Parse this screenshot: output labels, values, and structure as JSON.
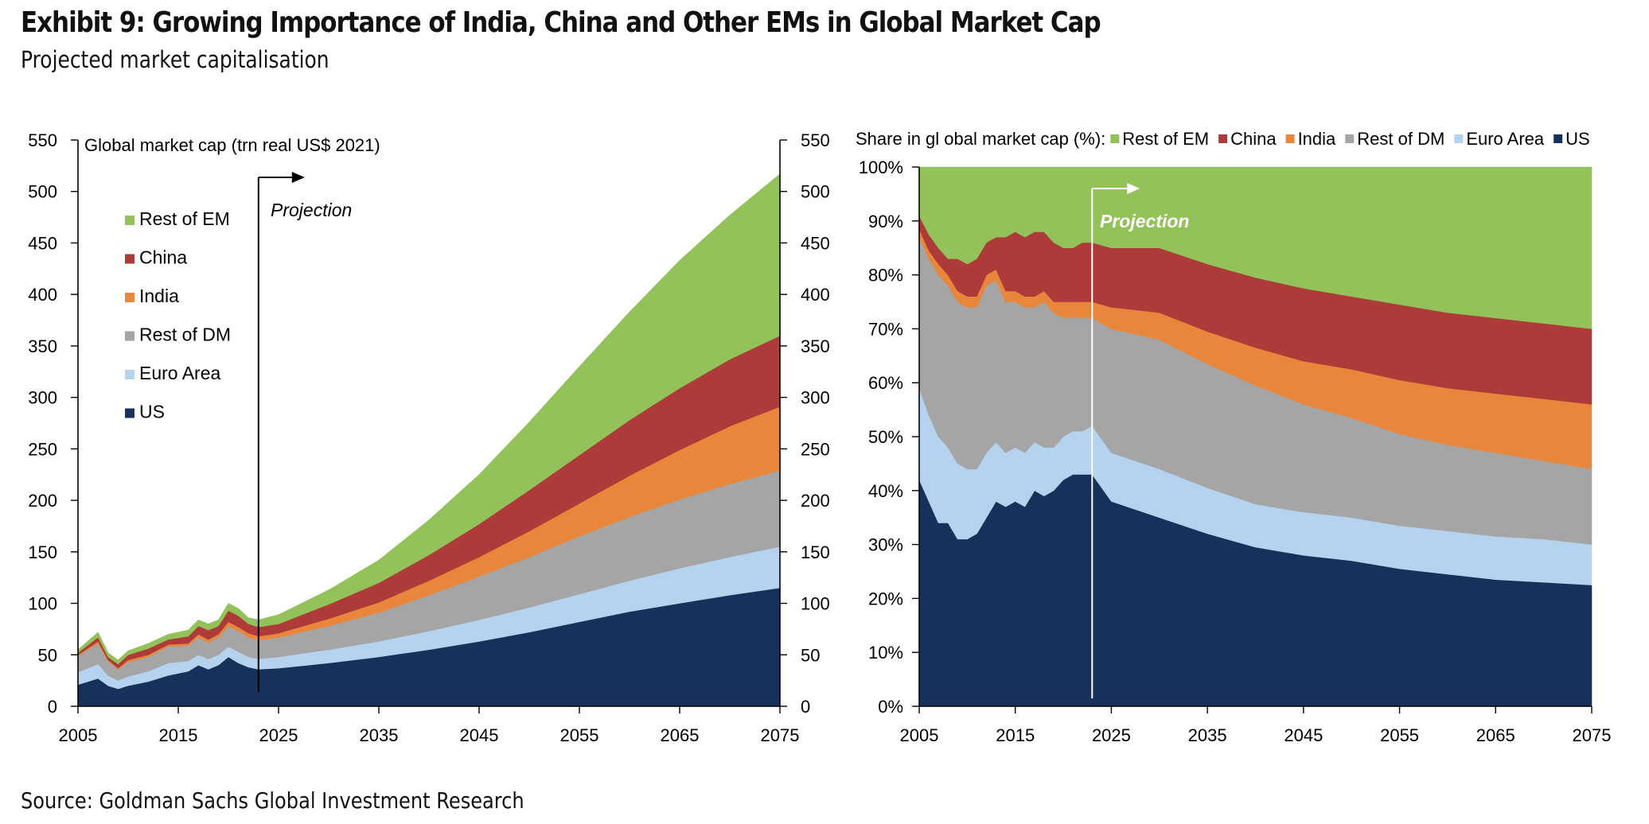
{
  "header": {
    "title": "Exhibit 9: Growing Importance of India, China and Other EMs in Global Market Cap",
    "subtitle": "Projected market capitalisation"
  },
  "footer": {
    "source": "Source: Goldman Sachs Global Investment Research"
  },
  "colors": {
    "US": "#17325a",
    "Euro Area": "#b5d3ee",
    "Rest of DM": "#a5a5a5",
    "India": "#e8873c",
    "China": "#ae3a39",
    "Rest of EM": "#93c15a"
  },
  "chart_data": [
    {
      "type": "area",
      "stacked": true,
      "title": "Global market cap (trn real US$ 2021)",
      "annotation": "Projection",
      "projection_start": 2023,
      "x": [
        2005,
        2007,
        2008,
        2009,
        2010,
        2012,
        2014,
        2016,
        2017,
        2018,
        2019,
        2020,
        2021,
        2022,
        2023,
        2025,
        2030,
        2035,
        2040,
        2045,
        2050,
        2055,
        2060,
        2065,
        2070,
        2075
      ],
      "xlim": [
        2005,
        2075
      ],
      "xticks": [
        2005,
        2015,
        2025,
        2035,
        2045,
        2055,
        2065,
        2075
      ],
      "ylim": [
        0,
        550
      ],
      "yticks": [
        0,
        50,
        100,
        150,
        200,
        250,
        300,
        350,
        400,
        450,
        500,
        550
      ],
      "legend_position": "upper-left",
      "series": [
        {
          "name": "US",
          "values": [
            21,
            27,
            20,
            17,
            20,
            24,
            30,
            34,
            40,
            36,
            40,
            48,
            42,
            38,
            36,
            37,
            42,
            48,
            55,
            63,
            72,
            82,
            92,
            100,
            108,
            115
          ]
        },
        {
          "name": "Euro Area",
          "values": [
            12,
            14,
            10,
            8,
            9,
            10,
            12,
            10,
            10,
            10,
            10,
            10,
            11,
            10,
            10,
            11,
            13,
            15,
            18,
            21,
            24,
            27,
            30,
            34,
            37,
            40
          ]
        },
        {
          "name": "Rest of DM",
          "values": [
            16,
            20,
            14,
            11,
            14,
            14,
            16,
            15,
            17,
            16,
            17,
            20,
            20,
            19,
            18,
            19,
            23,
            28,
            35,
            42,
            49,
            56,
            62,
            67,
            71,
            74
          ]
        },
        {
          "name": "India",
          "values": [
            1,
            2,
            1,
            1,
            2,
            2,
            2,
            2,
            3,
            3,
            3,
            4,
            4,
            4,
            4,
            4,
            7,
            10,
            14,
            19,
            25,
            32,
            40,
            48,
            56,
            62
          ]
        },
        {
          "name": "China",
          "values": [
            2,
            4,
            3,
            4,
            5,
            6,
            5,
            7,
            8,
            9,
            8,
            11,
            11,
            9,
            9,
            9,
            14,
            19,
            25,
            32,
            40,
            47,
            54,
            60,
            65,
            69
          ]
        },
        {
          "name": "Rest of EM",
          "values": [
            3,
            5,
            4,
            4,
            4,
            5,
            5,
            6,
            6,
            6,
            6,
            7,
            7,
            6,
            7,
            9,
            14,
            22,
            34,
            48,
            66,
            86,
            105,
            124,
            140,
            157
          ]
        }
      ]
    },
    {
      "type": "area",
      "stacked": true,
      "percent": true,
      "title": "Share in gl obal market cap (%):",
      "annotation": "Projection",
      "projection_start": 2023,
      "x": [
        2005,
        2006,
        2007,
        2008,
        2009,
        2010,
        2011,
        2012,
        2013,
        2014,
        2015,
        2016,
        2017,
        2018,
        2019,
        2020,
        2021,
        2022,
        2023,
        2025,
        2030,
        2035,
        2040,
        2045,
        2050,
        2055,
        2060,
        2065,
        2070,
        2075
      ],
      "xlim": [
        2005,
        2075
      ],
      "xticks": [
        2005,
        2015,
        2025,
        2035,
        2045,
        2055,
        2065,
        2075
      ],
      "ylim": [
        0,
        100
      ],
      "yticks": [
        "0%",
        "10%",
        "20%",
        "30%",
        "40%",
        "50%",
        "60%",
        "70%",
        "80%",
        "90%",
        "100%"
      ],
      "legend_position": "top",
      "series": [
        {
          "name": "US",
          "values": [
            42,
            38,
            34,
            34,
            31,
            31,
            32,
            35,
            38,
            37,
            38,
            37,
            40,
            39,
            40,
            42,
            43,
            43,
            43,
            38,
            35,
            32,
            29.5,
            28,
            27,
            25.5,
            24.5,
            23.5,
            23,
            22.5
          ]
        },
        {
          "name": "Euro Area",
          "values": [
            17,
            16,
            16,
            14,
            14,
            13,
            12,
            12,
            11,
            10,
            10,
            10,
            9,
            9,
            8,
            8,
            8,
            8,
            9,
            9,
            9,
            8.5,
            8,
            8,
            8,
            8,
            8,
            8,
            8,
            7.5
          ]
        },
        {
          "name": "Rest of DM",
          "values": [
            28,
            29,
            30,
            30,
            30,
            30,
            30,
            31,
            30,
            28,
            27,
            27,
            25,
            27,
            25,
            22,
            21,
            21,
            20,
            23,
            24,
            23,
            22,
            20,
            18.5,
            17,
            16,
            15.5,
            14.5,
            14
          ]
        },
        {
          "name": "India",
          "values": [
            1.5,
            1.5,
            2,
            2,
            2,
            2,
            2,
            2,
            2,
            2,
            2,
            2,
            2,
            2,
            2,
            3,
            3,
            3,
            3,
            4,
            5,
            6,
            7,
            8,
            9,
            10,
            10.5,
            11,
            11.5,
            12
          ]
        },
        {
          "name": "China",
          "values": [
            2.5,
            3,
            3,
            3,
            6,
            6,
            7,
            6,
            6,
            10,
            11,
            11,
            12,
            11,
            11,
            10,
            10,
            11,
            11,
            11,
            12,
            12.5,
            13,
            13.5,
            13.5,
            14,
            14,
            14,
            14,
            14
          ]
        },
        {
          "name": "Rest of EM",
          "values": [
            9,
            12.5,
            15,
            17,
            17,
            18,
            17,
            14,
            13,
            13,
            12,
            13,
            12,
            12,
            14,
            15,
            15,
            14,
            14,
            15,
            15,
            18,
            20.5,
            22.5,
            24,
            25.5,
            27,
            28,
            29,
            30
          ]
        }
      ]
    }
  ]
}
